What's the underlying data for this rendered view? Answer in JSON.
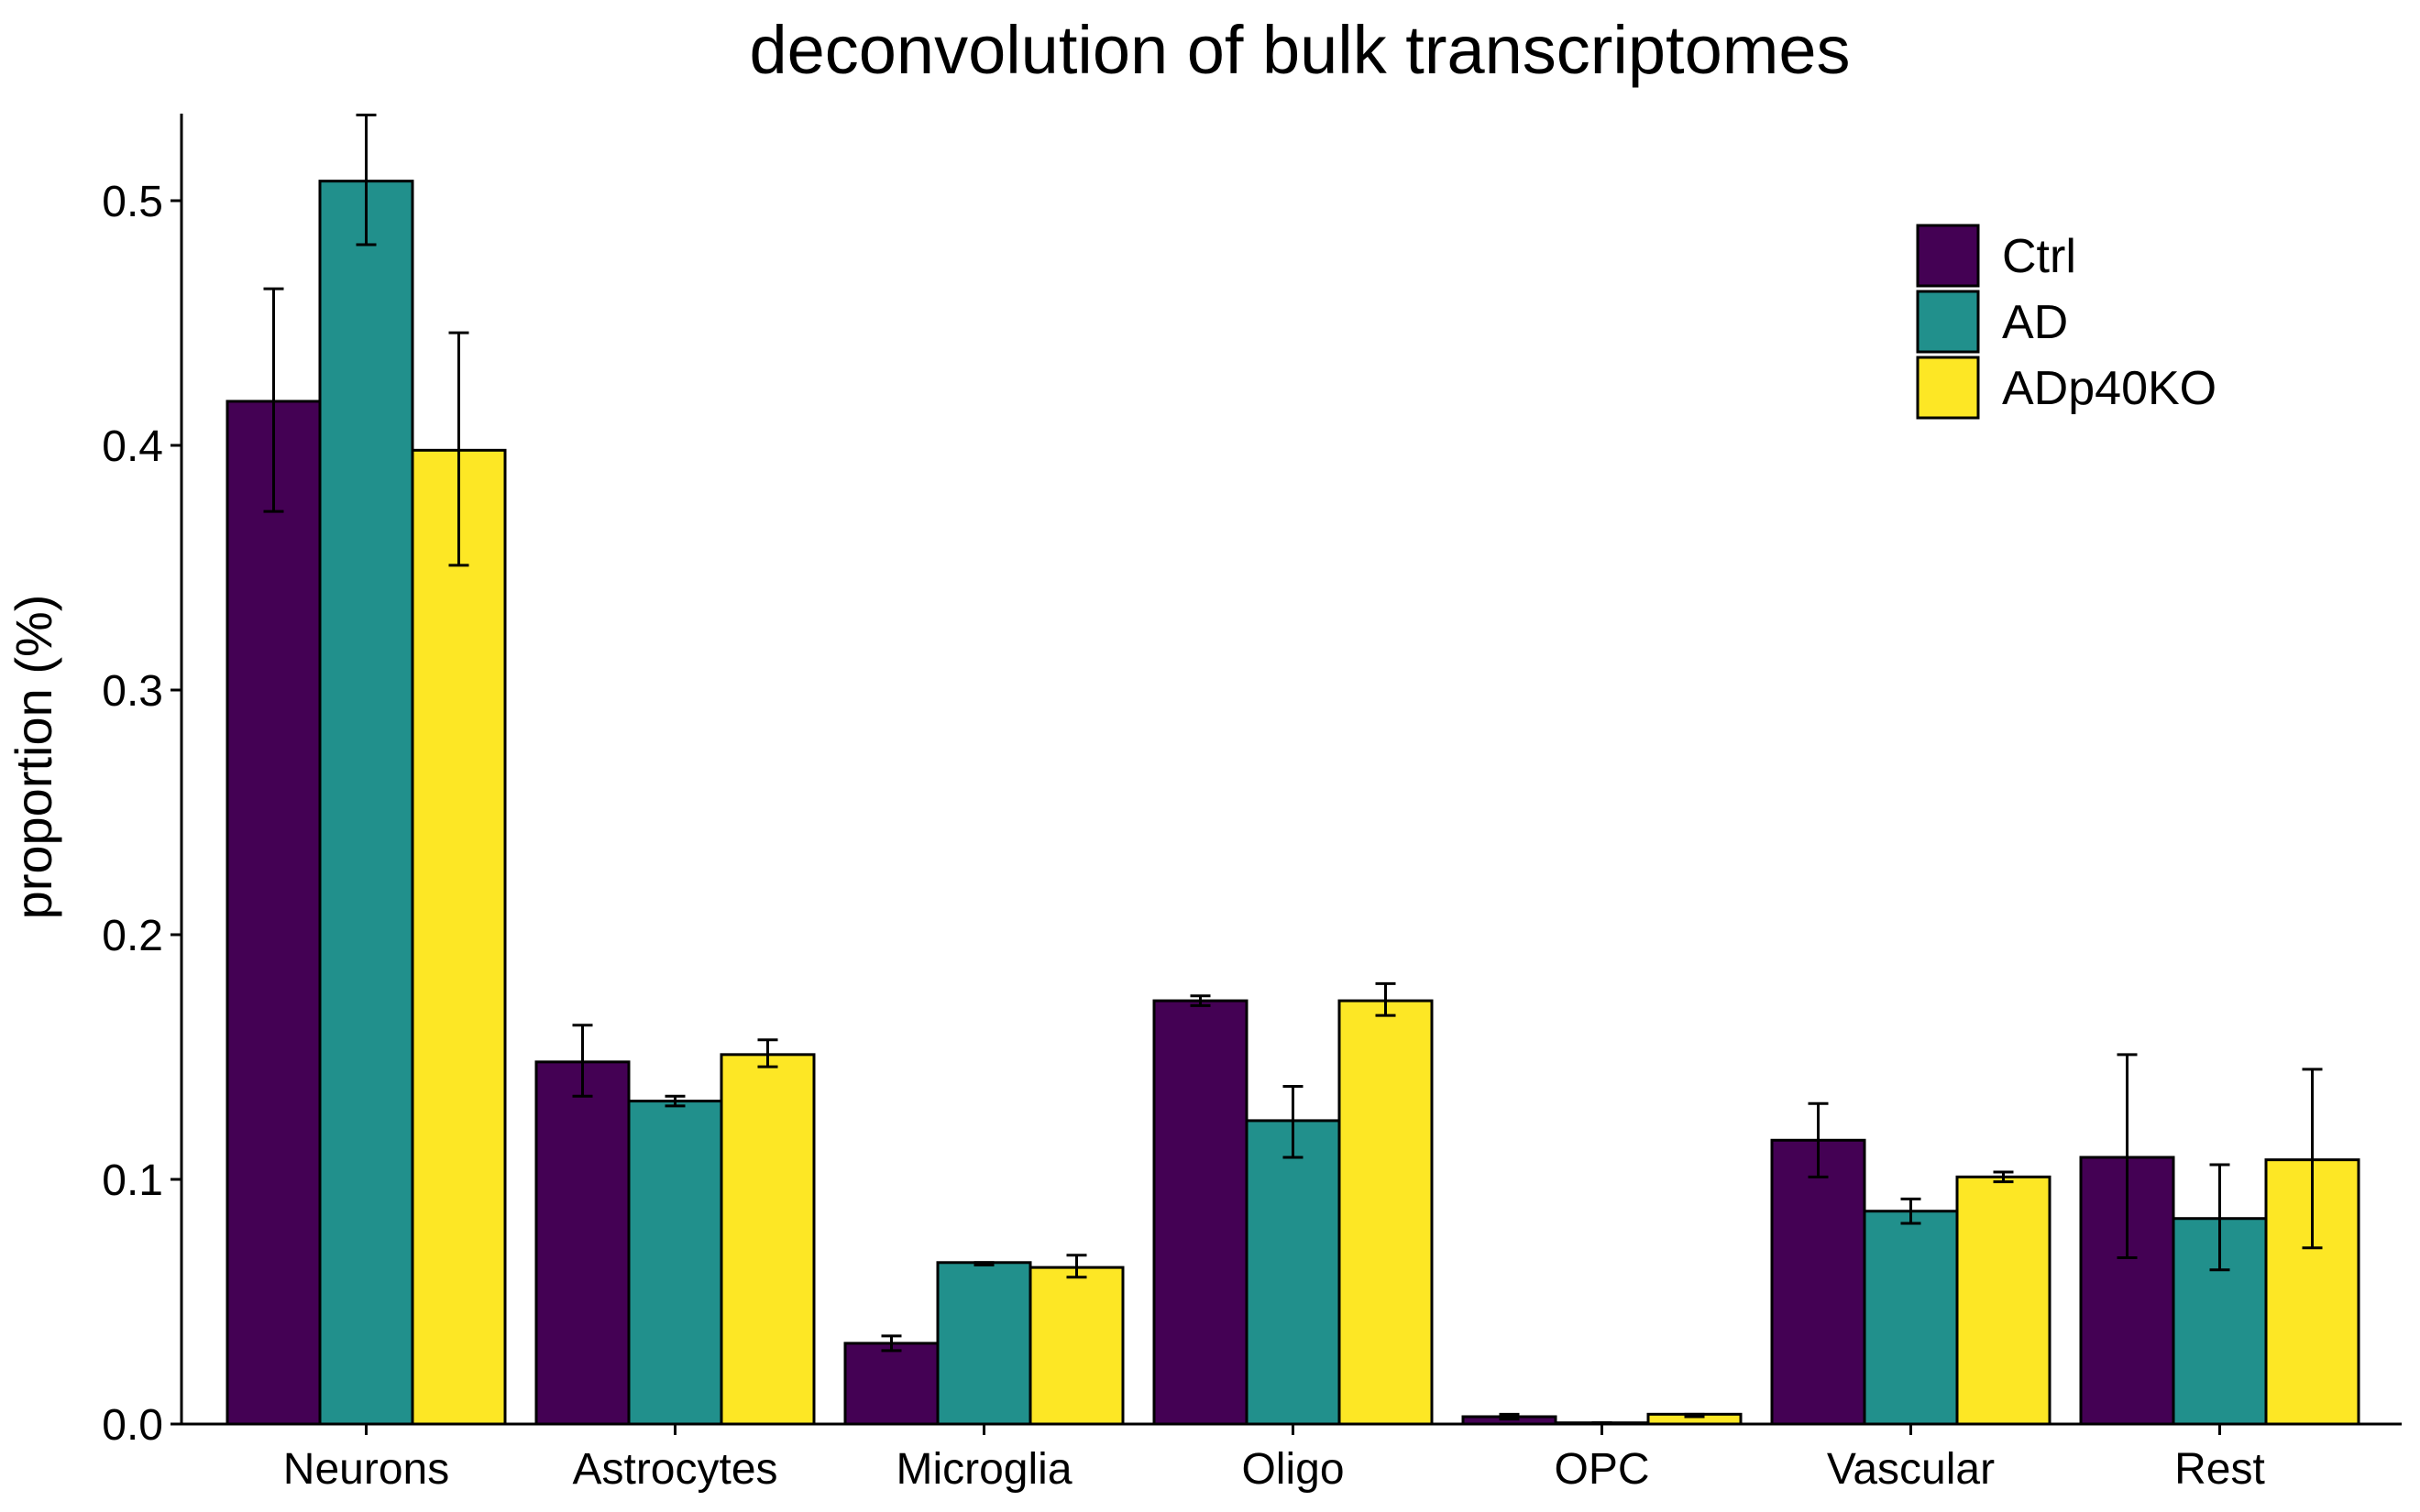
{
  "chart_data": {
    "type": "bar",
    "title": "deconvolution of bulk transcriptomes",
    "xlabel": "",
    "ylabel": "proportion (%)",
    "ylim": [
      0,
      0.535
    ],
    "yticks": [
      "0.0",
      "0.1",
      "0.2",
      "0.3",
      "0.4",
      "0.5"
    ],
    "categories": [
      "Neurons",
      "Astrocytes",
      "Microglia",
      "Oligo",
      "OPC",
      "Vascular",
      "Rest"
    ],
    "series": [
      {
        "name": "Ctrl",
        "color": "#440154",
        "values": [
          0.418,
          0.148,
          0.033,
          0.173,
          0.003,
          0.116,
          0.109
        ],
        "err_low": [
          0.373,
          0.134,
          0.03,
          0.171,
          0.002,
          0.101,
          0.068
        ],
        "err_high": [
          0.464,
          0.163,
          0.036,
          0.175,
          0.004,
          0.131,
          0.151
        ]
      },
      {
        "name": "AD",
        "color": "#21908C",
        "values": [
          0.508,
          0.132,
          0.066,
          0.124,
          0.0005,
          0.087,
          0.084
        ],
        "err_low": [
          0.482,
          0.13,
          0.065,
          0.109,
          0.0005,
          0.082,
          0.063
        ],
        "err_high": [
          0.535,
          0.134,
          0.066,
          0.138,
          0.0005,
          0.092,
          0.106
        ]
      },
      {
        "name": "ADp40KO",
        "color": "#FDE725",
        "values": [
          0.398,
          0.151,
          0.064,
          0.173,
          0.004,
          0.101,
          0.108
        ],
        "err_low": [
          0.351,
          0.146,
          0.06,
          0.167,
          0.003,
          0.099,
          0.072
        ],
        "err_high": [
          0.446,
          0.157,
          0.069,
          0.18,
          0.004,
          0.103,
          0.145
        ]
      }
    ],
    "grid": false,
    "legend_position": "top-right"
  }
}
